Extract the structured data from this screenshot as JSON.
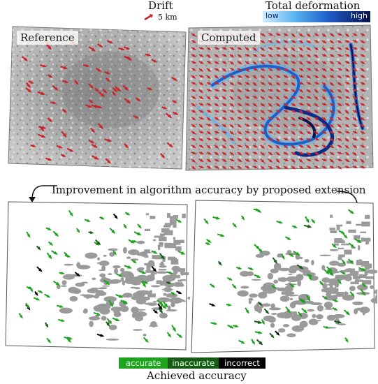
{
  "legend": {
    "drift_title": "Drift",
    "drift_scale_label": "5 km",
    "deformation_title": "Total deformation",
    "deformation_low": "low",
    "deformation_high": "high",
    "accuracy_title": "Achieved accuracy",
    "accuracy_items": [
      {
        "label": "accurate",
        "color": "#1fa31f"
      },
      {
        "label": "inaccurate",
        "color": "#145c14"
      },
      {
        "label": "incorrect",
        "color": "#000000"
      }
    ]
  },
  "panels": {
    "reference_label": "Reference",
    "computed_label": "Computed"
  },
  "improvement_caption": "Improvement in algorithm accuracy by proposed extension",
  "colors": {
    "drift_arrow": "#c8262b",
    "deform_low": "#5ab3f0",
    "deform_high": "#06124d",
    "accurate": "#1fa31f",
    "inaccurate": "#145c14",
    "incorrect": "#000000",
    "ice_grey": "#9a9a9a"
  },
  "icons": [
    "drift-arrow-icon",
    "curved-arrow-icon"
  ]
}
